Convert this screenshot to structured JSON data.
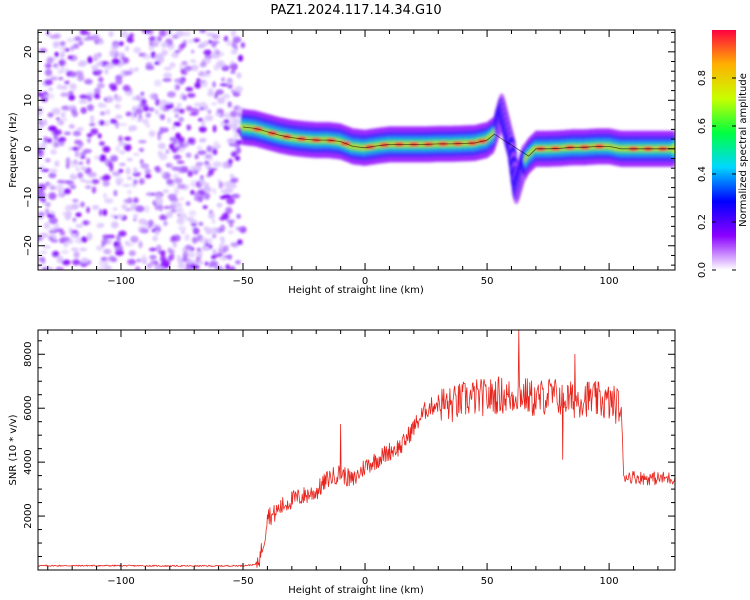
{
  "title": "PAZ1.2024.117.14.34.G10",
  "chart_data": [
    {
      "type": "heatmap",
      "xlabel": "Height of straight line (km)",
      "ylabel": "Frequency (Hz)",
      "xlim": [
        -134,
        127
      ],
      "ylim": [
        -25,
        24.5
      ],
      "xticks": [
        -100,
        -50,
        0,
        50,
        100
      ],
      "yticks": [
        -20,
        -10,
        0,
        10,
        20
      ],
      "colormap": [
        "#ffffff",
        "#8a00ff",
        "#0000ff",
        "#00d8ff",
        "#00ff40",
        "#c8ff00",
        "#ffb000",
        "#ff0040"
      ],
      "colorbar": {
        "label": "Normalized spectral amplitude",
        "range": [
          0,
          1
        ],
        "ticks": [
          0.0,
          0.2,
          0.4,
          0.6,
          0.8
        ]
      },
      "noise_region_x": [
        -134,
        -50
      ],
      "ridge": [
        [
          -50,
          4.5
        ],
        [
          -45,
          4.2
        ],
        [
          -40,
          3.5
        ],
        [
          -35,
          2.8
        ],
        [
          -30,
          2.3
        ],
        [
          -25,
          2.0
        ],
        [
          -20,
          1.8
        ],
        [
          -15,
          1.8
        ],
        [
          -10,
          1.5
        ],
        [
          -5,
          0.5
        ],
        [
          0,
          0.2
        ],
        [
          5,
          0.6
        ],
        [
          10,
          0.9
        ],
        [
          15,
          0.9
        ],
        [
          20,
          0.9
        ],
        [
          25,
          0.9
        ],
        [
          30,
          1.0
        ],
        [
          35,
          1.0
        ],
        [
          40,
          1.1
        ],
        [
          45,
          1.2
        ],
        [
          50,
          1.8
        ],
        [
          53,
          3.0
        ],
        [
          56,
          8.0
        ],
        [
          60,
          0.0
        ],
        [
          62,
          -8.0
        ],
        [
          65,
          -3.0
        ],
        [
          67,
          -1.5
        ],
        [
          70,
          0.0
        ],
        [
          75,
          0.0
        ],
        [
          80,
          0.1
        ],
        [
          85,
          0.3
        ],
        [
          90,
          0.3
        ],
        [
          95,
          0.5
        ],
        [
          100,
          0.5
        ],
        [
          105,
          0.0
        ],
        [
          110,
          0.0
        ],
        [
          115,
          0.0
        ],
        [
          120,
          0.0
        ],
        [
          127,
          0.0
        ]
      ]
    },
    {
      "type": "line",
      "xlabel": "Height of straight line (km)",
      "ylabel": "SNR (10 * v/v)",
      "xlim": [
        -134,
        127
      ],
      "ylim": [
        0,
        8900
      ],
      "xticks": [
        -100,
        -50,
        0,
        50,
        100
      ],
      "yticks": [
        2000,
        4000,
        6000,
        8000
      ],
      "color": "#e8231b",
      "x": [
        -134,
        -120,
        -100,
        -80,
        -60,
        -50,
        -45,
        -43,
        -41,
        -40,
        -38,
        -35,
        -30,
        -25,
        -20,
        -15,
        -10,
        -5,
        0,
        5,
        10,
        15,
        20,
        25,
        30,
        35,
        40,
        45,
        50,
        55,
        60,
        63,
        65,
        70,
        75,
        80,
        85,
        90,
        95,
        100,
        104,
        105,
        106,
        110,
        115,
        120,
        125,
        127
      ],
      "y": [
        160,
        160,
        160,
        150,
        150,
        160,
        200,
        500,
        1300,
        2100,
        2000,
        2300,
        2600,
        2750,
        2900,
        3400,
        3600,
        3300,
        3850,
        4100,
        4400,
        4600,
        5300,
        5950,
        6200,
        6100,
        6300,
        6400,
        6400,
        6500,
        6400,
        6600,
        6500,
        6300,
        6500,
        6400,
        6300,
        6400,
        6300,
        6200,
        6100,
        5800,
        3500,
        3450,
        3400,
        3400,
        3400,
        3400
      ]
    }
  ]
}
